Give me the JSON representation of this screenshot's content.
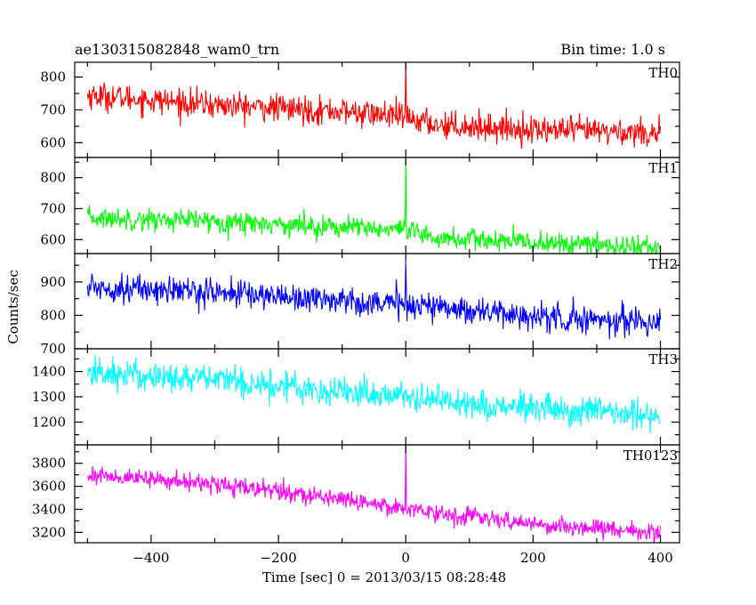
{
  "header": {
    "title": "ae130315082848_wam0_trn",
    "bin_time": "Bin time: 1.0 s"
  },
  "axes": {
    "ylabel": "Counts/sec",
    "xlabel": "Time [sec] 0 = 2013/03/15 08:28:48"
  },
  "chart_data": [
    {
      "type": "line",
      "name": "TH0",
      "color": "#ff0000",
      "xlim": [
        -520,
        430
      ],
      "ylim": [
        555,
        845
      ],
      "yticks": [
        600,
        700,
        800
      ],
      "xticks": [
        -400,
        -200,
        0,
        200,
        400
      ],
      "trend": [
        [
          -500,
          745
        ],
        [
          -300,
          715
        ],
        [
          -100,
          695
        ],
        [
          -10,
          680
        ],
        [
          50,
          655
        ],
        [
          200,
          640
        ],
        [
          400,
          630
        ]
      ],
      "noise": 38,
      "spikes": [
        [
          0,
          845
        ]
      ],
      "x_range": [
        -500,
        400
      ]
    },
    {
      "type": "line",
      "name": "TH1",
      "color": "#00ff00",
      "xlim": [
        -520,
        430
      ],
      "ylim": [
        555,
        865
      ],
      "yticks": [
        600,
        700,
        800
      ],
      "xticks": [
        -400,
        -200,
        0,
        200,
        400
      ],
      "trend": [
        [
          -500,
          670
        ],
        [
          -300,
          660
        ],
        [
          -100,
          640
        ],
        [
          -10,
          630
        ],
        [
          50,
          605
        ],
        [
          200,
          590
        ],
        [
          400,
          575
        ]
      ],
      "noise": 32,
      "spikes": [
        [
          0,
          865
        ]
      ],
      "x_range": [
        -500,
        400
      ]
    },
    {
      "type": "line",
      "name": "TH2",
      "color": "#0000ff",
      "xlim": [
        -520,
        430
      ],
      "ylim": [
        700,
        985
      ],
      "yticks": [
        700,
        800,
        900
      ],
      "xticks": [
        -400,
        -200,
        0,
        200,
        400
      ],
      "trend": [
        [
          -500,
          885
        ],
        [
          -300,
          870
        ],
        [
          -100,
          845
        ],
        [
          -10,
          835
        ],
        [
          60,
          825
        ],
        [
          200,
          795
        ],
        [
          400,
          780
        ]
      ],
      "noise": 38,
      "spikes": [
        [
          0,
          960
        ]
      ],
      "x_range": [
        -500,
        400
      ]
    },
    {
      "type": "line",
      "name": "TH3",
      "color": "#00ffff",
      "xlim": [
        -520,
        430
      ],
      "ylim": [
        1110,
        1490
      ],
      "yticks": [
        1200,
        1300,
        1400
      ],
      "xticks": [
        -400,
        -200,
        0,
        200,
        400
      ],
      "trend": [
        [
          -500,
          1395
        ],
        [
          -300,
          1370
        ],
        [
          -100,
          1320
        ],
        [
          -10,
          1305
        ],
        [
          60,
          1285
        ],
        [
          200,
          1250
        ],
        [
          400,
          1225
        ]
      ],
      "noise": 55,
      "spikes": [],
      "x_range": [
        -500,
        400
      ]
    },
    {
      "type": "line",
      "name": "TH0123",
      "color": "#ff00ff",
      "xlim": [
        -520,
        430
      ],
      "ylim": [
        3110,
        3960
      ],
      "yticks": [
        3200,
        3400,
        3600,
        3800
      ],
      "xticks": [
        -400,
        -200,
        0,
        200,
        400
      ],
      "trend": [
        [
          -500,
          3700
        ],
        [
          -300,
          3620
        ],
        [
          -100,
          3490
        ],
        [
          -10,
          3420
        ],
        [
          50,
          3370
        ],
        [
          200,
          3270
        ],
        [
          400,
          3200
        ]
      ],
      "noise": 70,
      "spikes": [
        [
          0,
          3960
        ]
      ],
      "x_range": [
        -500,
        400
      ]
    }
  ]
}
